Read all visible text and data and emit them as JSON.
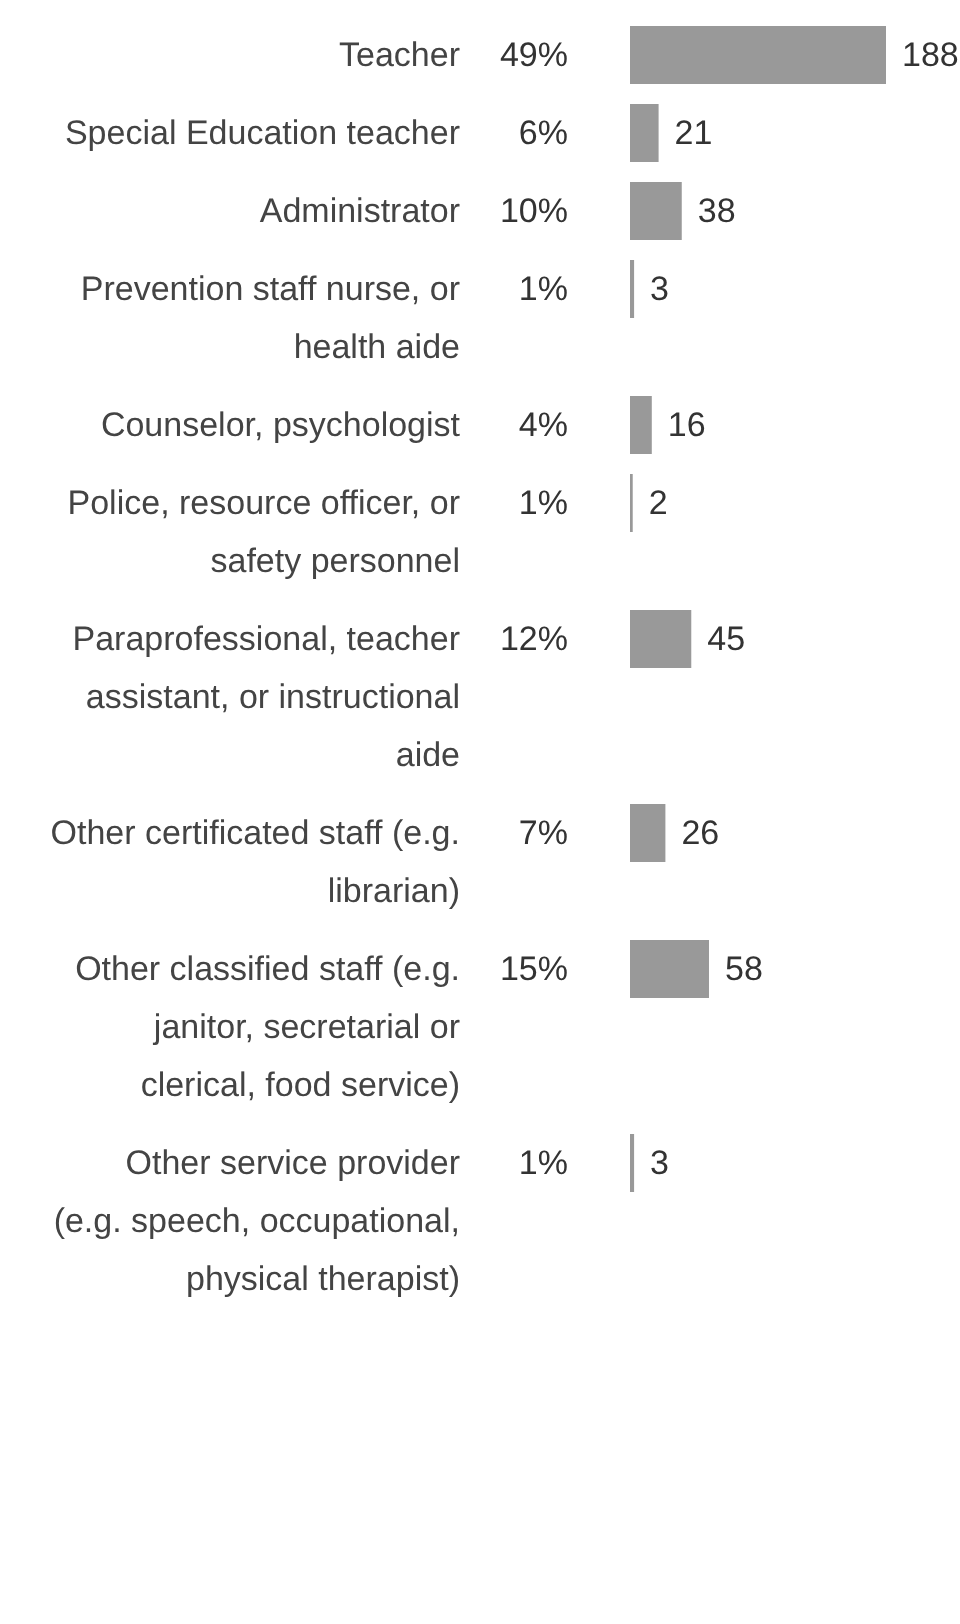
{
  "chart_data": {
    "type": "bar",
    "orientation": "horizontal",
    "categories": [
      "Teacher",
      "Special Education teacher",
      "Administrator",
      "Prevention staff nurse, or health aide",
      "Counselor, psychologist",
      "Police, resource officer, or safety personnel",
      "Paraprofessional, teacher assistant, or instructional aide",
      "Other certificated staff (e.g. librarian)",
      "Other classified staff (e.g. janitor, secretarial or clerical, food service)",
      "Other service provider (e.g. speech, occupational, physical therapist)"
    ],
    "values": [
      188,
      21,
      38,
      3,
      16,
      2,
      45,
      26,
      58,
      3
    ],
    "color": "#999999",
    "data_labels": true,
    "annotations": [
      "49%",
      "6%",
      "10%",
      "1%",
      "4%",
      "1%",
      "12%",
      "7%",
      "15%",
      "1%"
    ]
  }
}
